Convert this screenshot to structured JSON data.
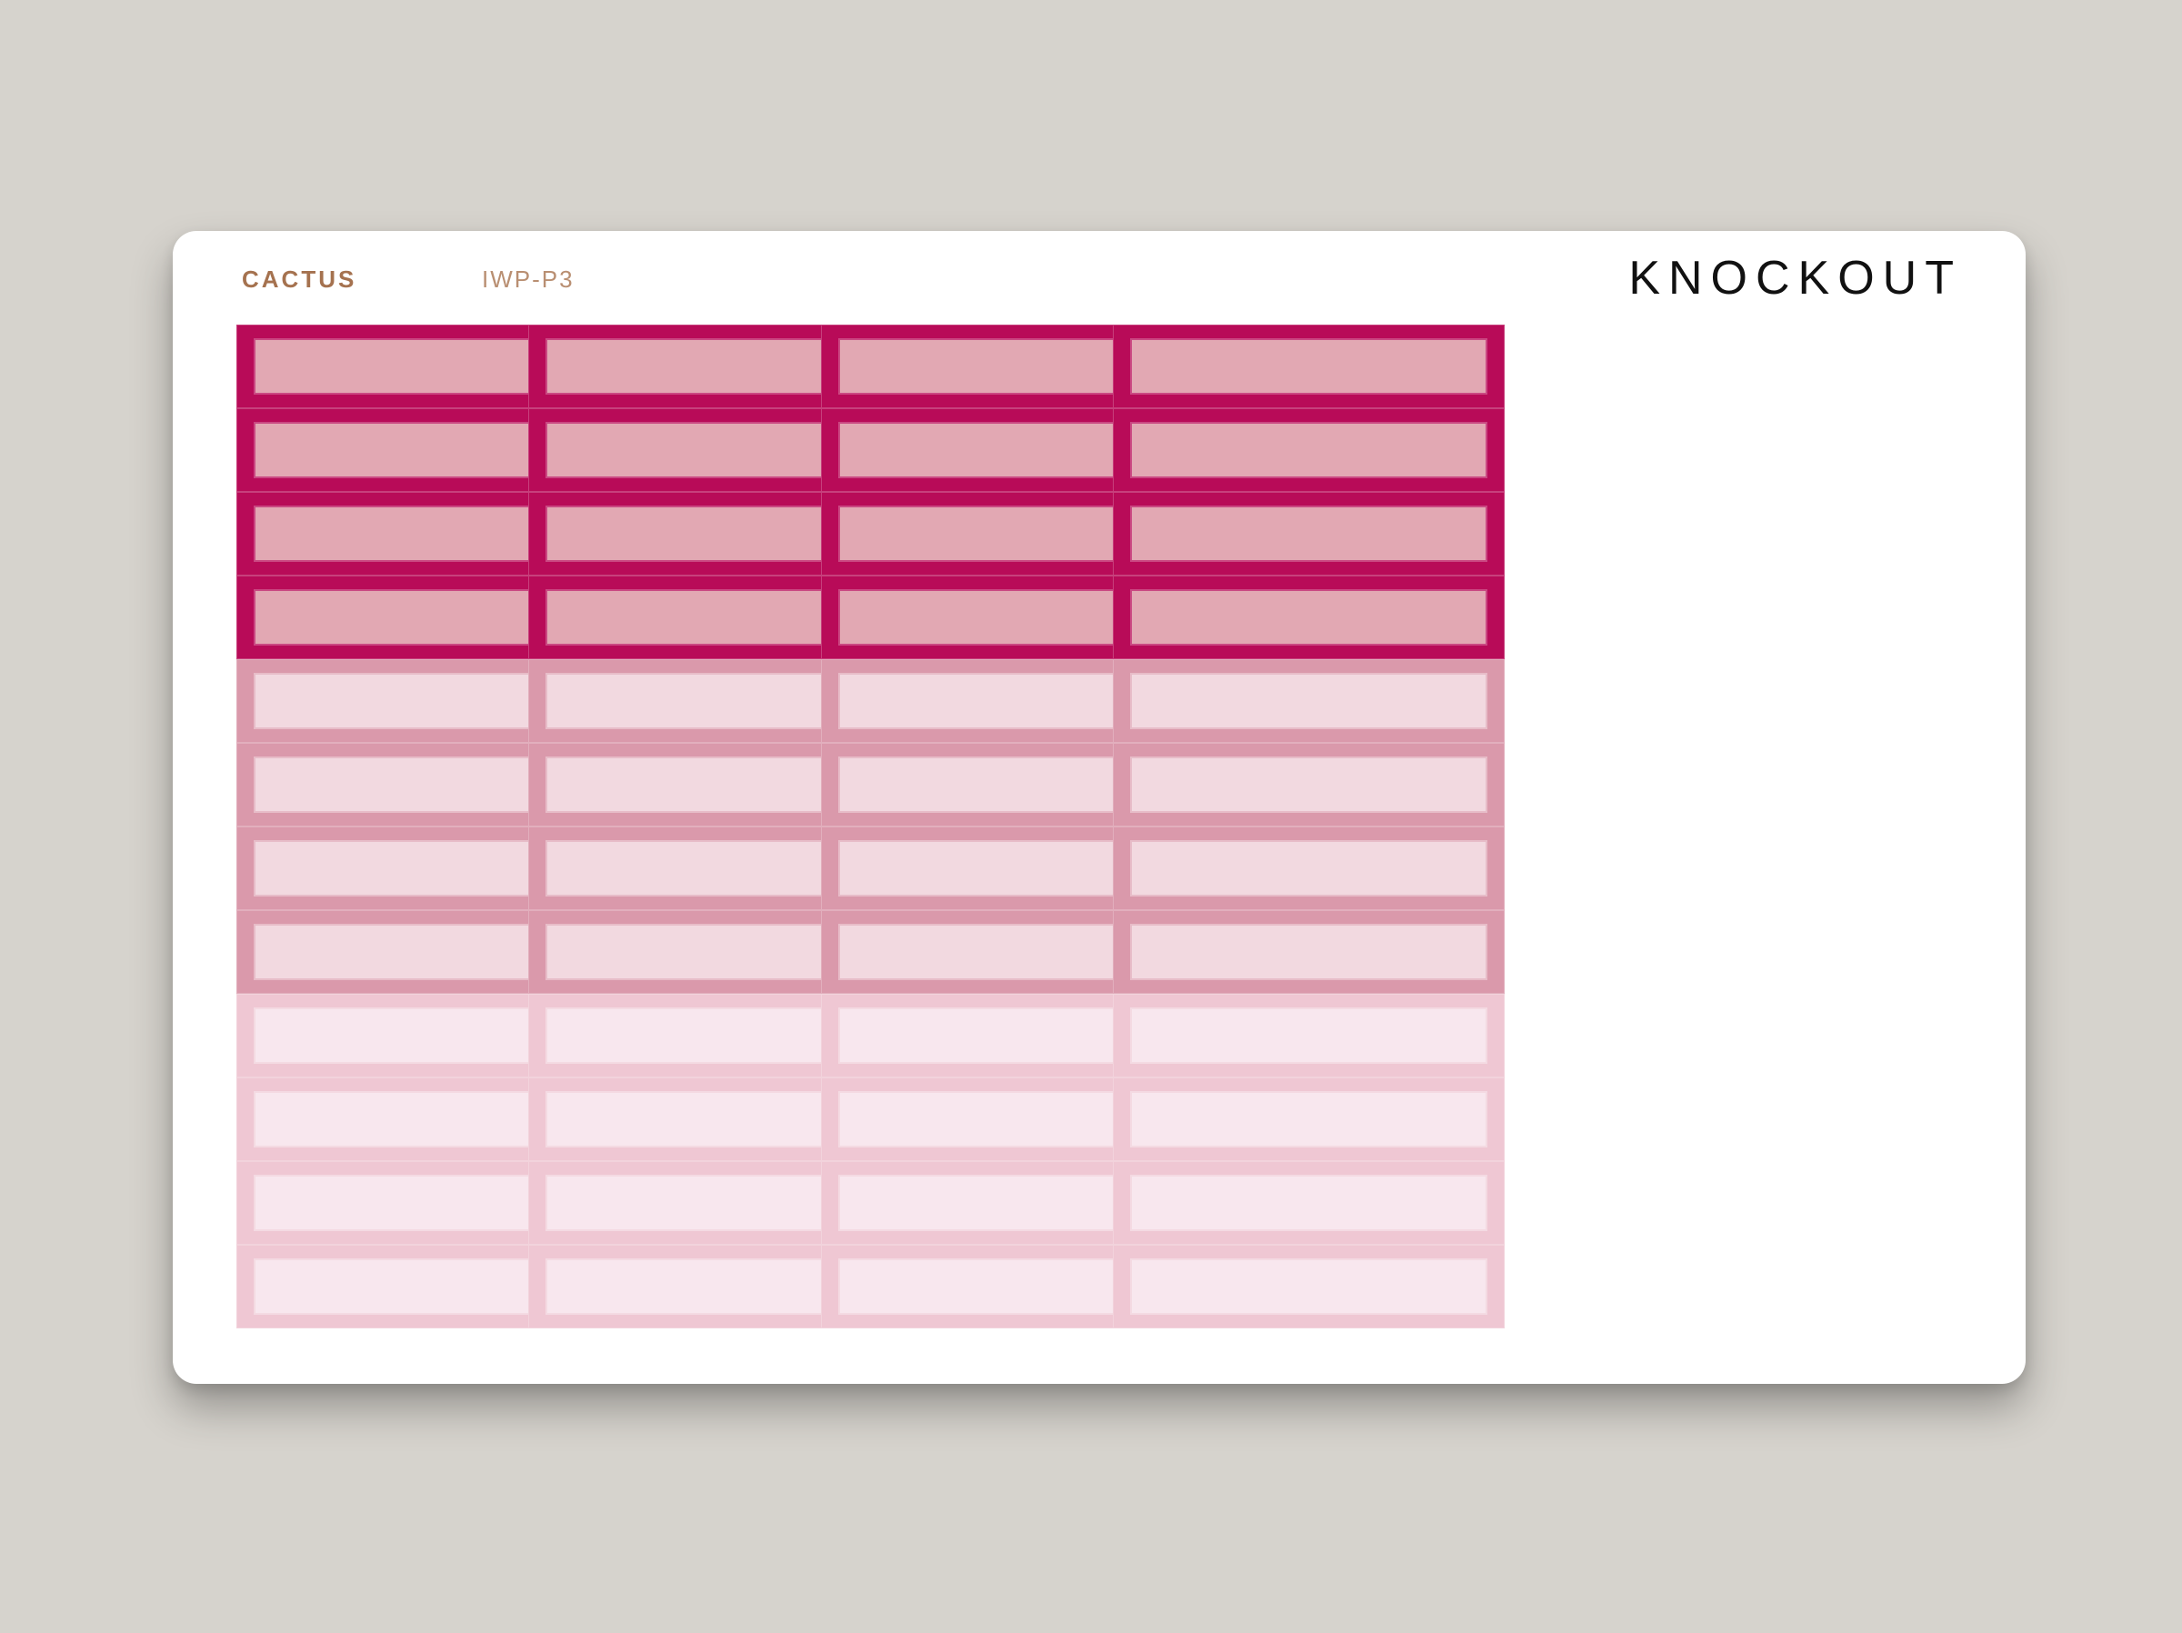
{
  "sheet": {
    "brand": "CACTUS",
    "sku": "IWP-P3",
    "title": "KNOCKOUT"
  },
  "layout_info": {
    "columns": 4,
    "rows_per_column": 12,
    "tiers": [
      {
        "name": "dark",
        "rows": 4,
        "border_color": "#b80b58",
        "fill_color": "#e2a8b3"
      },
      {
        "name": "mid",
        "rows": 4,
        "border_color": "#da99ab",
        "fill_color": "#f2d9e0"
      },
      {
        "name": "light",
        "rows": 4,
        "border_color": "#efc7d3",
        "fill_color": "#f8e7ee"
      }
    ]
  },
  "colors": {
    "background": "#d6d3cd",
    "sheet": "#ffffff",
    "brand_text": "#a5724f",
    "sku_text": "#b98f72",
    "title_text": "#111111"
  }
}
